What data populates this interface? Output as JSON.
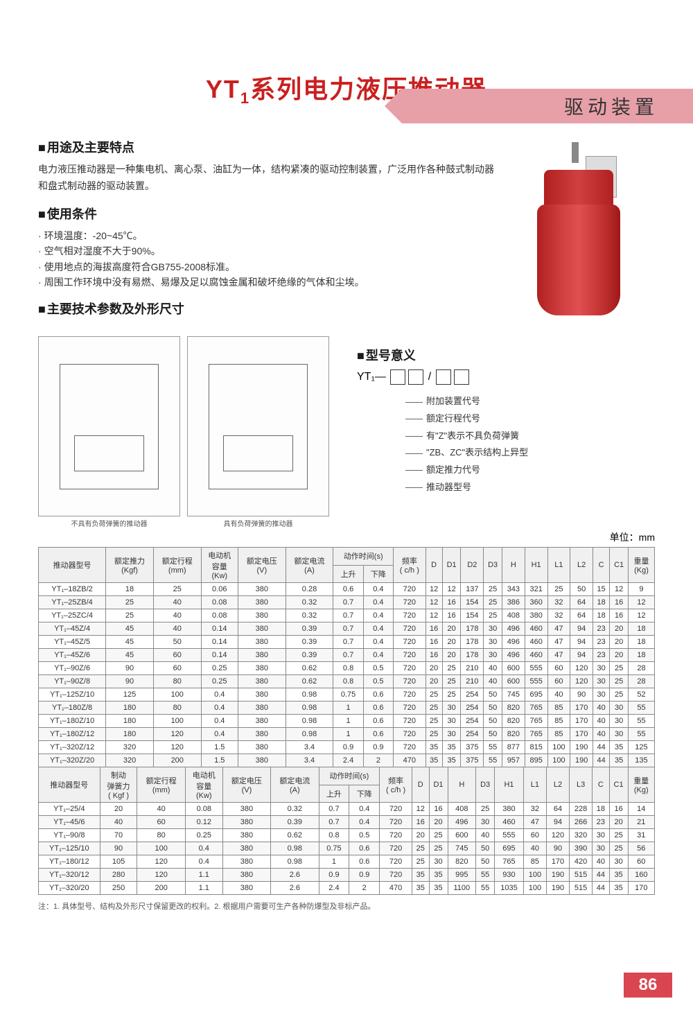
{
  "header": {
    "category": "驱动装置"
  },
  "title": {
    "prefix": "YT",
    "sub": "1",
    "rest": "系列电力液压推动器"
  },
  "sections": {
    "s1_head": "用途及主要特点",
    "s1_text": "电力液压推动器是一种集电机、离心泵、油缸为一体，结构紧凑的驱动控制装置，广泛用作各种鼓式制动器和盘式制动器的驱动装置。",
    "s2_head": "使用条件",
    "s2_items": [
      "环境温度：-20~45℃。",
      "空气相对湿度不大于90%。",
      "使用地点的海拔高度符合GB755-2008标准。",
      "周围工作环境中没有易燃、易爆及足以腐蚀金属和破坏绝缘的气体和尘埃。"
    ],
    "s3_head": "主要技术参数及外形尺寸",
    "s4_head": "型号意义",
    "diag_cap1": "不具有负荷弹簧的推动器",
    "diag_cap2": "具有负荷弹簧的推动器",
    "model_code_prefix": "YT₁—",
    "model_items": [
      "附加装置代号",
      "额定行程代号",
      "有\"Z\"表示不具负荷弹簧",
      "\"ZB、ZC\"表示结构上异型",
      "额定推力代号",
      "推动器型号"
    ]
  },
  "unit_label": "单位：mm",
  "table1": {
    "headers_r1": [
      "推动器型号",
      "额定推力\n(Kgf)",
      "额定行程\n(mm)",
      "电动机\n容量\n(Kw)",
      "额定电压\n(V)",
      "额定电流\n(A)",
      "动作时间(s)",
      "频率\n( c/h )",
      "D",
      "D1",
      "D2",
      "D3",
      "H",
      "H1",
      "L1",
      "L2",
      "C",
      "C1",
      "重量\n(Kg)"
    ],
    "sub_up": "上升",
    "sub_down": "下降",
    "rows": [
      [
        "YT₁–18ZB/2",
        "18",
        "25",
        "0.06",
        "380",
        "0.28",
        "0.6",
        "0.4",
        "720",
        "12",
        "12",
        "137",
        "25",
        "343",
        "321",
        "25",
        "50",
        "15",
        "12",
        "9"
      ],
      [
        "YT₁–25ZB/4",
        "25",
        "40",
        "0.08",
        "380",
        "0.32",
        "0.7",
        "0.4",
        "720",
        "12",
        "16",
        "154",
        "25",
        "386",
        "360",
        "32",
        "64",
        "18",
        "16",
        "12"
      ],
      [
        "YT₁–25ZC/4",
        "25",
        "40",
        "0.08",
        "380",
        "0.32",
        "0.7",
        "0.4",
        "720",
        "12",
        "16",
        "154",
        "25",
        "408",
        "380",
        "32",
        "64",
        "18",
        "16",
        "12"
      ],
      [
        "YT₁–45Z/4",
        "45",
        "40",
        "0.14",
        "380",
        "0.39",
        "0.7",
        "0.4",
        "720",
        "16",
        "20",
        "178",
        "30",
        "496",
        "460",
        "47",
        "94",
        "23",
        "20",
        "18"
      ],
      [
        "YT₁–45Z/5",
        "45",
        "50",
        "0.14",
        "380",
        "0.39",
        "0.7",
        "0.4",
        "720",
        "16",
        "20",
        "178",
        "30",
        "496",
        "460",
        "47",
        "94",
        "23",
        "20",
        "18"
      ],
      [
        "YT₁–45Z/6",
        "45",
        "60",
        "0.14",
        "380",
        "0.39",
        "0.7",
        "0.4",
        "720",
        "16",
        "20",
        "178",
        "30",
        "496",
        "460",
        "47",
        "94",
        "23",
        "20",
        "18"
      ],
      [
        "YT₁–90Z/6",
        "90",
        "60",
        "0.25",
        "380",
        "0.62",
        "0.8",
        "0.5",
        "720",
        "20",
        "25",
        "210",
        "40",
        "600",
        "555",
        "60",
        "120",
        "30",
        "25",
        "28"
      ],
      [
        "YT₁–90Z/8",
        "90",
        "80",
        "0.25",
        "380",
        "0.62",
        "0.8",
        "0.5",
        "720",
        "20",
        "25",
        "210",
        "40",
        "600",
        "555",
        "60",
        "120",
        "30",
        "25",
        "28"
      ],
      [
        "YT₁–125Z/10",
        "125",
        "100",
        "0.4",
        "380",
        "0.98",
        "0.75",
        "0.6",
        "720",
        "25",
        "25",
        "254",
        "50",
        "745",
        "695",
        "40",
        "90",
        "30",
        "25",
        "52"
      ],
      [
        "YT₁–180Z/8",
        "180",
        "80",
        "0.4",
        "380",
        "0.98",
        "1",
        "0.6",
        "720",
        "25",
        "30",
        "254",
        "50",
        "820",
        "765",
        "85",
        "170",
        "40",
        "30",
        "55"
      ],
      [
        "YT₁–180Z/10",
        "180",
        "100",
        "0.4",
        "380",
        "0.98",
        "1",
        "0.6",
        "720",
        "25",
        "30",
        "254",
        "50",
        "820",
        "765",
        "85",
        "170",
        "40",
        "30",
        "55"
      ],
      [
        "YT₁–180Z/12",
        "180",
        "120",
        "0.4",
        "380",
        "0.98",
        "1",
        "0.6",
        "720",
        "25",
        "30",
        "254",
        "50",
        "820",
        "765",
        "85",
        "170",
        "40",
        "30",
        "55"
      ],
      [
        "YT₁–320Z/12",
        "320",
        "120",
        "1.5",
        "380",
        "3.4",
        "0.9",
        "0.9",
        "720",
        "35",
        "35",
        "375",
        "55",
        "877",
        "815",
        "100",
        "190",
        "44",
        "35",
        "125"
      ],
      [
        "YT₁–320Z/20",
        "320",
        "200",
        "1.5",
        "380",
        "3.4",
        "2.4",
        "2",
        "470",
        "35",
        "35",
        "375",
        "55",
        "957",
        "895",
        "100",
        "190",
        "44",
        "35",
        "135"
      ]
    ]
  },
  "table2": {
    "headers_r1": [
      "推动器型号",
      "制动\n弹簧力\n( Kgf )",
      "额定行程\n(mm)",
      "电动机\n容量\n(Kw)",
      "额定电压\n(V)",
      "额定电流\n(A)",
      "动作时间(s)",
      "频率\n( c/h )",
      "D",
      "D1",
      "H",
      "D3",
      "H1",
      "L1",
      "L2",
      "L3",
      "C",
      "C1",
      "重量\n(Kg)"
    ],
    "rows": [
      [
        "YT₁–25/4",
        "20",
        "40",
        "0.08",
        "380",
        "0.32",
        "0.7",
        "0.4",
        "720",
        "12",
        "16",
        "408",
        "25",
        "380",
        "32",
        "64",
        "228",
        "18",
        "16",
        "14"
      ],
      [
        "YT₁–45/6",
        "40",
        "60",
        "0.12",
        "380",
        "0.39",
        "0.7",
        "0.4",
        "720",
        "16",
        "20",
        "496",
        "30",
        "460",
        "47",
        "94",
        "266",
        "23",
        "20",
        "21"
      ],
      [
        "YT₁–90/8",
        "70",
        "80",
        "0.25",
        "380",
        "0.62",
        "0.8",
        "0.5",
        "720",
        "20",
        "25",
        "600",
        "40",
        "555",
        "60",
        "120",
        "320",
        "30",
        "25",
        "31"
      ],
      [
        "YT₁–125/10",
        "90",
        "100",
        "0.4",
        "380",
        "0.98",
        "0.75",
        "0.6",
        "720",
        "25",
        "25",
        "745",
        "50",
        "695",
        "40",
        "90",
        "390",
        "30",
        "25",
        "56"
      ],
      [
        "YT₁–180/12",
        "105",
        "120",
        "0.4",
        "380",
        "0.98",
        "1",
        "0.6",
        "720",
        "25",
        "30",
        "820",
        "50",
        "765",
        "85",
        "170",
        "420",
        "40",
        "30",
        "60"
      ],
      [
        "YT₁–320/12",
        "280",
        "120",
        "1.1",
        "380",
        "2.6",
        "0.9",
        "0.9",
        "720",
        "35",
        "35",
        "995",
        "55",
        "930",
        "100",
        "190",
        "515",
        "44",
        "35",
        "160"
      ],
      [
        "YT₁–320/20",
        "250",
        "200",
        "1.1",
        "380",
        "2.6",
        "2.4",
        "2",
        "470",
        "35",
        "35",
        "1100",
        "55",
        "1035",
        "100",
        "190",
        "515",
        "44",
        "35",
        "170"
      ]
    ]
  },
  "footnote": "注：1. 具体型号、结构及外形尺寸保留更改的权利。2. 根据用户需要可生产各种防爆型及非标产品。",
  "page_num": "86",
  "colors": {
    "accent_red": "#c92020",
    "band_pink": "#e8a0a8",
    "pagenum_bg": "#d94550"
  }
}
